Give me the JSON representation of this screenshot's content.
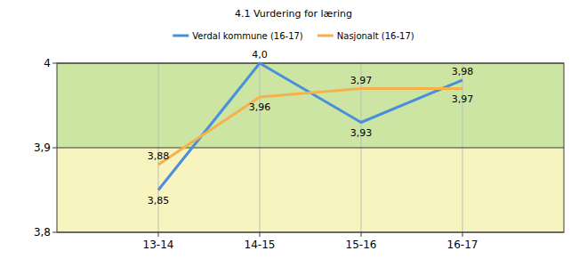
{
  "chart_data": {
    "type": "line",
    "title": "4.1 Vurdering for læring",
    "categories": [
      "13-14",
      "14-15",
      "15-16",
      "16-17"
    ],
    "series": [
      {
        "name": "Verdal kommune (16-17)",
        "color": "#4a8fdb",
        "values": [
          3.85,
          4.0,
          3.93,
          3.98
        ],
        "value_labels": [
          "3,85",
          "4,0",
          "3,93",
          "3,98"
        ]
      },
      {
        "name": "Nasjonalt (16-17)",
        "color": "#f6b24a",
        "values": [
          3.88,
          3.96,
          3.97,
          3.97
        ],
        "value_labels": [
          "3,88",
          "3,96",
          "3,97",
          "3,97"
        ]
      }
    ],
    "ylim": [
      3.8,
      4
    ],
    "yticks": [
      {
        "value": 3.8,
        "label": "3,8"
      },
      {
        "value": 3.9,
        "label": "3,9"
      },
      4
    ],
    "bands": [
      {
        "from": 3.8,
        "to": 3.9,
        "color": "#f7f4bf"
      },
      {
        "from": 3.9,
        "to": 4,
        "color": "#cde5a3"
      }
    ],
    "grid": true,
    "legend": "top",
    "data_labels": true
  }
}
